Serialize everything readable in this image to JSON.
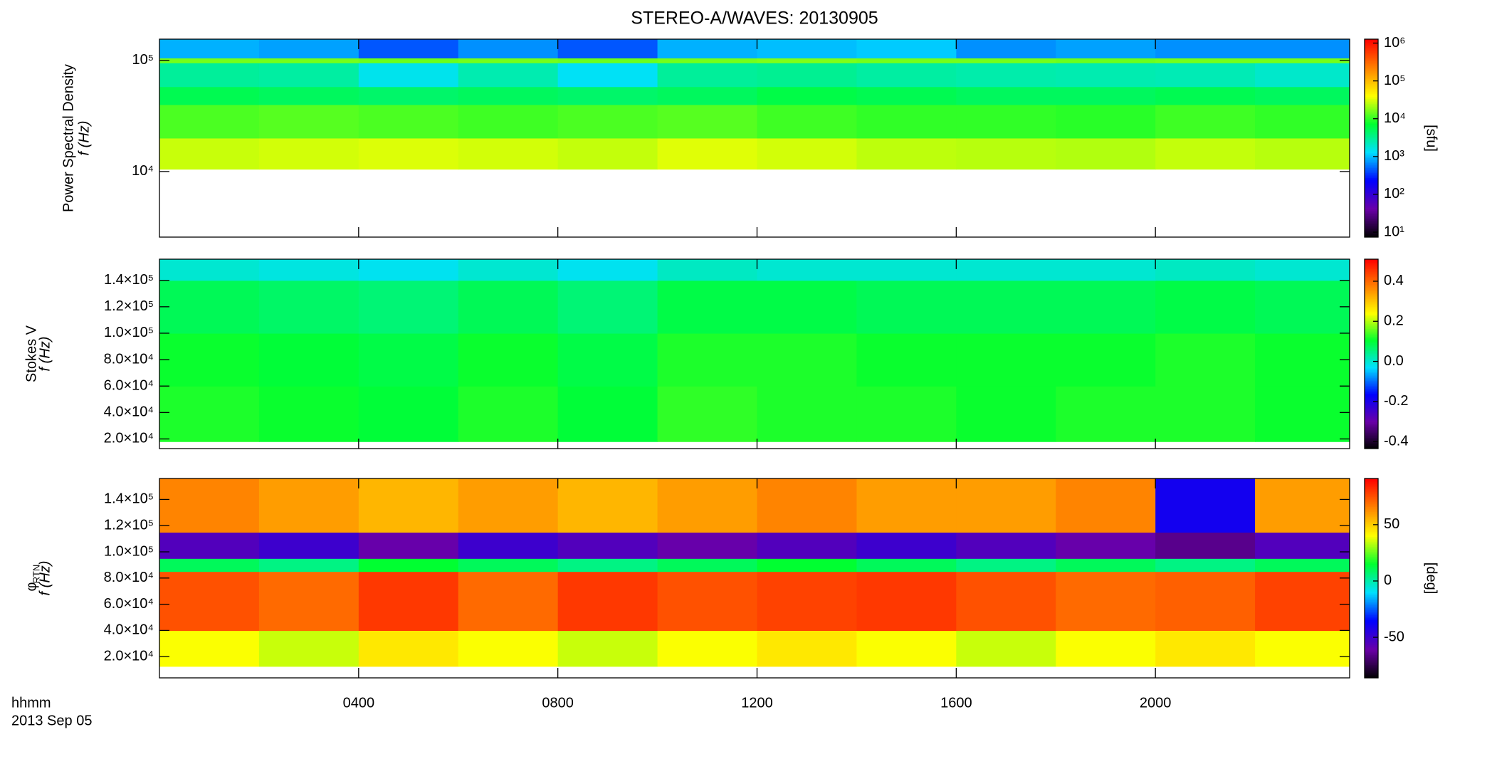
{
  "chart_data": [
    {
      "type": "heatmap",
      "title": "STEREO-A/WAVES: 20130905",
      "ylabel": "Power Spectral Density",
      "ylabel2": "f (Hz)",
      "log_y": true,
      "ylim": [
        2570,
        155000
      ],
      "yticks": [
        {
          "value": 10000,
          "label": "10⁴"
        },
        {
          "value": 100000,
          "label": "10⁵"
        }
      ],
      "xlim": [
        0,
        23.9
      ],
      "x_bins": [
        0,
        2,
        4,
        6,
        8,
        10,
        12,
        14,
        16,
        18,
        20,
        22,
        23.9
      ],
      "y_bins": [
        10500,
        20000,
        40000,
        58000,
        95000,
        105000,
        155000
      ],
      "z": [
        [
          28000,
          30000,
          32000,
          30000,
          27000,
          33000,
          30000,
          26000,
          25000,
          24000,
          27000,
          25000
        ],
        [
          12000,
          13000,
          12000,
          11000,
          12000,
          13000,
          11000,
          10000,
          10000,
          9500,
          11000,
          10000
        ],
        [
          5500,
          5000,
          4500,
          5000,
          4500,
          5000,
          6000,
          5500,
          5000,
          5000,
          5500,
          5000
        ],
        [
          3000,
          2800,
          1500,
          2500,
          1400,
          3000,
          3200,
          2800,
          2600,
          2500,
          2400,
          2000
        ],
        [
          16000,
          16000,
          15000,
          16000,
          15000,
          16000,
          17000,
          16000,
          16000,
          15000,
          16000,
          16000
        ],
        [
          900,
          800,
          450,
          700,
          450,
          900,
          1000,
          1100,
          700,
          800,
          700,
          700
        ]
      ],
      "zlabel": "[sfu]",
      "log_z": true,
      "zlim": [
        7.4,
        1270000
      ],
      "zticks": [
        {
          "value": 10,
          "label": "10¹"
        },
        {
          "value": 100,
          "label": "10²"
        },
        {
          "value": 1000,
          "label": "10³"
        },
        {
          "value": 10000,
          "label": "10⁴"
        },
        {
          "value": 100000,
          "label": "10⁵"
        },
        {
          "value": 1000000,
          "label": "10⁶"
        }
      ],
      "colormap": [
        "#000000",
        "#6a00a8",
        "#0000ff",
        "#00e0ff",
        "#00ff30",
        "#ffff00",
        "#ff8000",
        "#ff0000"
      ]
    },
    {
      "type": "heatmap",
      "ylabel": "Stokes V",
      "ylabel2": "f (Hz)",
      "log_y": false,
      "ylim": [
        12700,
        156000
      ],
      "yticks": [
        {
          "value": 20000,
          "label": "2.0×10⁴"
        },
        {
          "value": 40000,
          "label": "4.0×10⁴"
        },
        {
          "value": 60000,
          "label": "6.0×10⁴"
        },
        {
          "value": 80000,
          "label": "8.0×10⁴"
        },
        {
          "value": 100000,
          "label": "1.0×10⁵"
        },
        {
          "value": 120000,
          "label": "1.2×10⁵"
        },
        {
          "value": 140000,
          "label": "1.4×10⁵"
        }
      ],
      "xlim": [
        0,
        23.9
      ],
      "x_bins": [
        0,
        2,
        4,
        6,
        8,
        10,
        12,
        14,
        16,
        18,
        20,
        22,
        23.9
      ],
      "y_bins": [
        18000,
        60000,
        100000,
        140000,
        156000
      ],
      "z": [
        [
          0.12,
          0.11,
          0.1,
          0.12,
          0.1,
          0.13,
          0.12,
          0.12,
          0.11,
          0.12,
          0.12,
          0.11
        ],
        [
          0.11,
          0.1,
          0.09,
          0.11,
          0.09,
          0.12,
          0.12,
          0.11,
          0.11,
          0.11,
          0.12,
          0.11
        ],
        [
          0.08,
          0.07,
          0.06,
          0.08,
          0.06,
          0.09,
          0.09,
          0.08,
          0.08,
          0.08,
          0.09,
          0.08
        ],
        [
          0.0,
          -0.01,
          -0.02,
          0.0,
          -0.02,
          0.01,
          0.0,
          0.0,
          0.0,
          0.0,
          0.01,
          0.0
        ]
      ],
      "log_z": false,
      "zlim": [
        -0.435,
        0.51
      ],
      "zticks": [
        -0.4,
        -0.2,
        {
          "value": 0,
          "label": "0.0"
        },
        0.2,
        0.4
      ],
      "colormap": [
        "#000000",
        "#6a00a8",
        "#0000ff",
        "#00e0ff",
        "#00ff30",
        "#ffff00",
        "#ff8000",
        "#ff0000"
      ]
    },
    {
      "type": "heatmap",
      "ylabel": "φ",
      "ylabel_sub": "RTN",
      "ylabel2": "f (Hz)",
      "log_y": false,
      "ylim": [
        3800,
        156000
      ],
      "yticks": [
        {
          "value": 20000,
          "label": "2.0×10⁴"
        },
        {
          "value": 40000,
          "label": "4.0×10⁴"
        },
        {
          "value": 60000,
          "label": "6.0×10⁴"
        },
        {
          "value": 80000,
          "label": "8.0×10⁴"
        },
        {
          "value": 100000,
          "label": "1.0×10⁵"
        },
        {
          "value": 120000,
          "label": "1.2×10⁵"
        },
        {
          "value": 140000,
          "label": "1.4×10⁵"
        }
      ],
      "xlim": [
        0,
        23.9
      ],
      "x_bins": [
        0,
        2,
        4,
        6,
        8,
        10,
        12,
        14,
        16,
        18,
        20,
        22,
        23.9
      ],
      "xticks": [
        {
          "value": 4,
          "label": "0400"
        },
        {
          "value": 8,
          "label": "0800"
        },
        {
          "value": 12,
          "label": "1200"
        },
        {
          "value": 16,
          "label": "1600"
        },
        {
          "value": 20,
          "label": "2000"
        }
      ],
      "xlabel": "hhmm",
      "xsublabel": "2013 Sep 05",
      "y_bins": [
        12600,
        40000,
        85000,
        95000,
        115000,
        156000
      ],
      "z": [
        [
          40,
          35,
          45,
          40,
          35,
          40,
          45,
          40,
          35,
          40,
          45,
          40
        ],
        [
          75,
          70,
          80,
          70,
          80,
          75,
          78,
          80,
          75,
          70,
          72,
          78
        ],
        [
          10,
          5,
          15,
          10,
          5,
          10,
          15,
          10,
          5,
          10,
          5,
          10
        ],
        [
          -55,
          -50,
          -60,
          -50,
          -55,
          -60,
          -55,
          -50,
          -55,
          -60,
          -65,
          -55
        ],
        [
          65,
          60,
          55,
          60,
          55,
          60,
          65,
          60,
          60,
          65,
          -40,
          60
        ]
      ],
      "zlabel": "[deg]",
      "log_z": false,
      "zlim": [
        -86,
        91
      ],
      "zticks": [
        -50,
        0,
        50
      ],
      "colormap": [
        "#000000",
        "#6a00a8",
        "#0000ff",
        "#00e0ff",
        "#00ff30",
        "#ffff00",
        "#ff8000",
        "#ff0000"
      ]
    }
  ]
}
